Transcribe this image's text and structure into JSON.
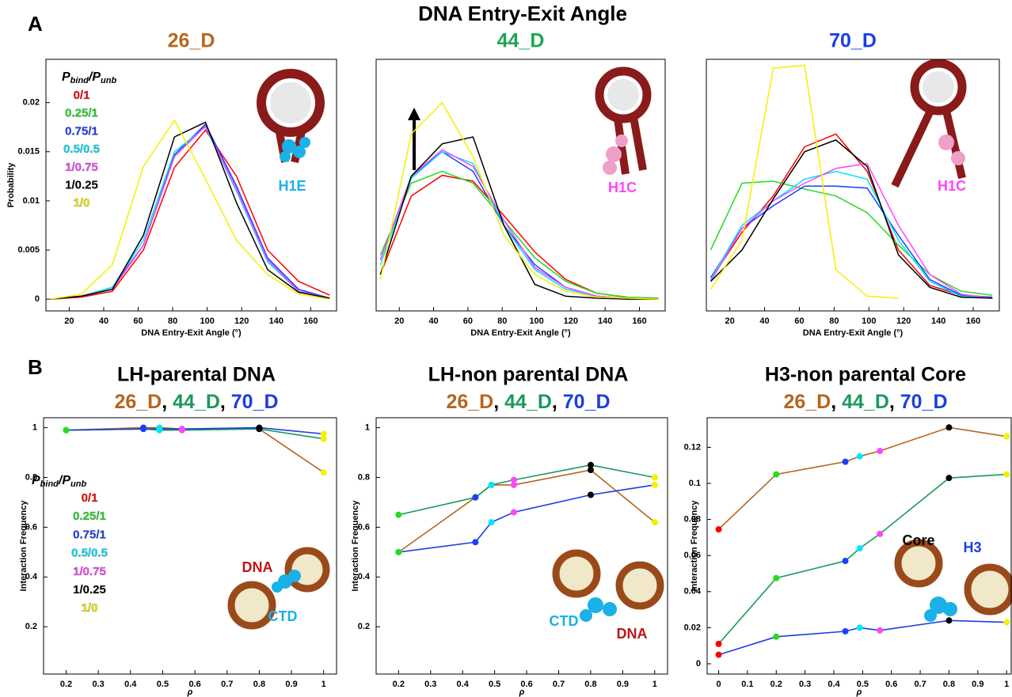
{
  "figure": {
    "panel_a": "A",
    "panel_b": "B",
    "title": "DNA Entry-Exit Angle"
  },
  "chart_data": [
    {
      "type": "line",
      "title": "26_D",
      "title_color": "#b8661e",
      "x_label": "DNA Entry-Exit Angle (°)",
      "y_label": "Probability",
      "x": [
        9,
        27,
        45,
        63,
        81,
        99,
        117,
        135,
        153,
        171
      ],
      "xlim": [
        6.5,
        175
      ],
      "xticks": [
        20,
        40,
        60,
        80,
        100,
        120,
        140,
        160
      ],
      "ylim": [
        -0.0012,
        0.0244
      ],
      "yticks": [
        0,
        0.005,
        0.01,
        0.015,
        0.02
      ],
      "legend_title": [
        {
          "text": "P"
        },
        {
          "text": "bind",
          "sub": true
        },
        {
          "text": "/"
        },
        {
          "text": "P"
        },
        {
          "text": "unb",
          "sub": true
        }
      ],
      "series": [
        {
          "name": "0/1",
          "color": "#ff0000",
          "values": [
            0,
            0.0002,
            0.0008,
            0.005,
            0.0134,
            0.0172,
            0.0125,
            0.005,
            0.0018,
            0.0004
          ]
        },
        {
          "name": "0.25/1",
          "color": "#22dd22",
          "values": [
            0,
            0.0003,
            0.001,
            0.0055,
            0.0145,
            0.0177,
            0.011,
            0.004,
            0.0008,
            0.0001
          ]
        },
        {
          "name": "0.75/1",
          "color": "#1a3fff",
          "values": [
            0,
            0.0003,
            0.0012,
            0.0055,
            0.0147,
            0.0178,
            0.0115,
            0.0042,
            0.001,
            0.0001
          ]
        },
        {
          "name": "0.5/0.5",
          "color": "#00e5ff",
          "values": [
            0,
            0.0003,
            0.0012,
            0.006,
            0.015,
            0.0175,
            0.011,
            0.0038,
            0.0008,
            0.0001
          ]
        },
        {
          "name": "1/0.75",
          "color": "#ff44ff",
          "values": [
            0,
            0.0003,
            0.001,
            0.0055,
            0.0145,
            0.0176,
            0.0112,
            0.004,
            0.0008,
            0.0001
          ]
        },
        {
          "name": "1/0.25",
          "color": "#000000",
          "values": [
            0,
            0.0003,
            0.001,
            0.0065,
            0.0165,
            0.018,
            0.0098,
            0.003,
            0.0007,
            0.0001
          ]
        },
        {
          "name": "1/0",
          "color": "#f5f000",
          "values": [
            0,
            0.0005,
            0.0035,
            0.0135,
            0.0182,
            0.0122,
            0.006,
            0.0025,
            0.0005,
            0
          ]
        }
      ],
      "legend": true,
      "annotations": [
        {
          "text": "H1E",
          "color": "#1ab0e8"
        }
      ]
    },
    {
      "type": "line",
      "title": "44_D",
      "title_color": "#1aa84f",
      "x_label": "DNA Entry-Exit Angle (°)",
      "x": [
        9,
        27,
        45,
        63,
        81,
        99,
        117,
        135,
        153,
        171
      ],
      "xlim": [
        6.5,
        175
      ],
      "xticks": [
        20,
        40,
        60,
        80,
        100,
        120,
        140,
        160
      ],
      "ylim": [
        -0.0012,
        0.0244
      ],
      "series": [
        {
          "name": "0/1",
          "color": "#ff0000",
          "values": [
            0.0025,
            0.0105,
            0.0126,
            0.012,
            0.0085,
            0.0048,
            0.002,
            0.0006,
            0.0002,
            0.0001
          ]
        },
        {
          "name": "0.25/1",
          "color": "#22dd22",
          "values": [
            0.0045,
            0.0118,
            0.013,
            0.0118,
            0.008,
            0.0042,
            0.0018,
            0.0006,
            0.0002,
            0.0001
          ]
        },
        {
          "name": "0.75/1",
          "color": "#1a3fff",
          "values": [
            0.004,
            0.0125,
            0.015,
            0.013,
            0.0075,
            0.0035,
            0.0012,
            0.0003,
            0.0001,
            0
          ]
        },
        {
          "name": "0.5/0.5",
          "color": "#00e5ff",
          "values": [
            0.0035,
            0.0123,
            0.015,
            0.0138,
            0.0075,
            0.003,
            0.001,
            0.0003,
            0.0001,
            0
          ]
        },
        {
          "name": "1/0.75",
          "color": "#ff44ff",
          "values": [
            0.004,
            0.0125,
            0.0152,
            0.0135,
            0.008,
            0.0032,
            0.0012,
            0.0003,
            0.0001,
            0
          ]
        },
        {
          "name": "1/0.25",
          "color": "#000000",
          "values": [
            0.0025,
            0.0125,
            0.0158,
            0.0165,
            0.0075,
            0.0015,
            0.0003,
            0.0001,
            0,
            0
          ]
        },
        {
          "name": "1/0",
          "color": "#f5f000",
          "values": [
            0.002,
            0.0168,
            0.02,
            0.0145,
            0.0065,
            0.0025,
            0.0008,
            0.0002,
            0.0001,
            0
          ]
        }
      ],
      "annotations": [
        {
          "text": "H1C",
          "color": "#ff44ff"
        }
      ]
    },
    {
      "type": "line",
      "title": "70_D",
      "title_color": "#1a3fe0",
      "x_label": "DNA Entry-Exit Angle (°)",
      "x": [
        9,
        27,
        45,
        63,
        81,
        99,
        117,
        135,
        153,
        171
      ],
      "xlim": [
        6.5,
        175
      ],
      "xticks": [
        20,
        40,
        60,
        80,
        100,
        120,
        140,
        160
      ],
      "ylim": [
        -0.0012,
        0.0244
      ],
      "series": [
        {
          "name": "0/1",
          "color": "#ff0000",
          "values": [
            0.002,
            0.0068,
            0.0105,
            0.0155,
            0.0168,
            0.013,
            0.005,
            0.0014,
            0.0004,
            0.0001
          ]
        },
        {
          "name": "0.25/1",
          "color": "#22dd22",
          "values": [
            0.005,
            0.0118,
            0.012,
            0.0112,
            0.0105,
            0.0088,
            0.0055,
            0.0025,
            0.0008,
            0.0004
          ]
        },
        {
          "name": "0.75/1",
          "color": "#1a3fff",
          "values": [
            0.0022,
            0.0072,
            0.0095,
            0.0115,
            0.0115,
            0.0113,
            0.0065,
            0.002,
            0.0004,
            0.0002
          ]
        },
        {
          "name": "0.5/0.5",
          "color": "#00e5ff",
          "values": [
            0.002,
            0.0075,
            0.01,
            0.0122,
            0.013,
            0.0122,
            0.006,
            0.0018,
            0.0003,
            0.0001
          ]
        },
        {
          "name": "1/0.75",
          "color": "#ff44ff",
          "values": [
            0.0018,
            0.0072,
            0.01,
            0.0118,
            0.0133,
            0.0138,
            0.0075,
            0.0025,
            0.0005,
            0.0001
          ]
        },
        {
          "name": "1/0.25",
          "color": "#000000",
          "values": [
            0.0018,
            0.005,
            0.0102,
            0.015,
            0.0162,
            0.0135,
            0.0045,
            0.0012,
            0.0002,
            0.0001
          ]
        },
        {
          "name": "1/0",
          "color": "#f5f000",
          "values": [
            0.001,
            0.006,
            0.0235,
            0.0238,
            0.003,
            0.0003,
            0.0001,
            null,
            null,
            null
          ]
        }
      ],
      "annotations": [
        {
          "text": "H1C",
          "color": "#ff44ff"
        }
      ]
    },
    {
      "type": "line",
      "markers": true,
      "title": "LH-parental DNA",
      "subtitle_separator": ", ",
      "x_label": "ρ",
      "y_label": "Interaction Frequency",
      "x": [
        0.2,
        0.44,
        0.49,
        0.56,
        0.8,
        1
      ],
      "marker_colors": [
        "#22dd22",
        "#1a3fff",
        "#00e5ff",
        "#ff44ff",
        "#000000",
        "#f5f000"
      ],
      "xlim": [
        0.13,
        1.04
      ],
      "xticks": [
        0.2,
        0.3,
        0.4,
        0.5,
        0.6,
        0.7,
        0.8,
        0.9,
        1
      ],
      "ylim": [
        0.01,
        1.04
      ],
      "yticks": [
        0.2,
        0.4,
        0.6,
        0.8,
        1
      ],
      "series": [
        {
          "name": "26_D",
          "color": "#b5651d",
          "values": [
            0.99,
            1.0,
            1.0,
            0.995,
            0.995,
            0.82
          ]
        },
        {
          "name": "44_D",
          "color": "#1a9a5a",
          "values": [
            0.99,
            0.995,
            0.99,
            0.99,
            0.995,
            0.955
          ]
        },
        {
          "name": "70_D",
          "color": "#1a3fe0",
          "values": [
            0.99,
            0.995,
            0.995,
            0.995,
            1.0,
            0.975
          ]
        }
      ],
      "key": {
        "title": [
          {
            "text": "P"
          },
          {
            "text": "bind",
            "sub": true
          },
          {
            "text": "/"
          },
          {
            "text": "P"
          },
          {
            "text": "unb",
            "sub": true
          }
        ],
        "entries": [
          {
            "label": "0/1",
            "color": "#ff0000"
          },
          {
            "label": "0.25/1",
            "color": "#22dd22"
          },
          {
            "label": "0.75/1",
            "color": "#1a3fff"
          },
          {
            "label": "0.5/0.5",
            "color": "#00e5ff"
          },
          {
            "label": "1/0.75",
            "color": "#ff44ff"
          },
          {
            "label": "1/0.25",
            "color": "#000000"
          },
          {
            "label": "1/0",
            "color": "#f5f000"
          }
        ]
      },
      "annotations": [
        {
          "text": "DNA",
          "color": "#c0141a"
        },
        {
          "text": "CTD",
          "color": "#1ab0e8"
        }
      ]
    },
    {
      "type": "line",
      "markers": true,
      "title": "LH-non parental DNA",
      "subtitle_separator": ", ",
      "x_label": "ρ",
      "y_label": "Interaction Frequency",
      "x": [
        0.2,
        0.44,
        0.49,
        0.56,
        0.8,
        1
      ],
      "marker_colors": [
        "#22dd22",
        "#1a3fff",
        "#00e5ff",
        "#ff44ff",
        "#000000",
        "#f5f000"
      ],
      "xlim": [
        0.13,
        1.04
      ],
      "xticks": [
        0.2,
        0.3,
        0.4,
        0.5,
        0.6,
        0.7,
        0.8,
        0.9,
        1
      ],
      "ylim": [
        0.01,
        1.04
      ],
      "yticks": [
        0.2,
        0.4,
        0.6,
        0.8,
        1
      ],
      "series": [
        {
          "name": "26_D",
          "color": "#b5651d",
          "values": [
            0.5,
            0.72,
            0.77,
            0.77,
            0.83,
            0.62
          ]
        },
        {
          "name": "44_D",
          "color": "#1a9a5a",
          "values": [
            0.65,
            0.72,
            0.77,
            0.79,
            0.85,
            0.8
          ]
        },
        {
          "name": "70_D",
          "color": "#1a3fe0",
          "values": [
            0.5,
            0.54,
            0.62,
            0.66,
            0.73,
            0.77
          ]
        }
      ],
      "annotations": [
        {
          "text": "CTD",
          "color": "#1ab0e8"
        },
        {
          "text": "DNA",
          "color": "#c0141a"
        }
      ]
    },
    {
      "type": "line",
      "markers": true,
      "title": "H3-non parental Core",
      "subtitle_separator": ", ",
      "x_label": "ρ",
      "y_label": "Interaction Frequency",
      "x": [
        0,
        0.2,
        0.44,
        0.49,
        0.56,
        0.8,
        1
      ],
      "marker_colors": [
        "#ff0000",
        "#22dd22",
        "#1a3fff",
        "#00e5ff",
        "#ff44ff",
        "#000000",
        "#f5f000"
      ],
      "xlim": [
        -0.04,
        1.016
      ],
      "xticks": [
        0,
        0.1,
        0.2,
        0.3,
        0.4,
        0.5,
        0.6,
        0.7,
        0.8,
        0.9,
        1
      ],
      "ylim": [
        -0.0057,
        0.1364
      ],
      "yticks": [
        0,
        0.02,
        0.04,
        0.06,
        0.08,
        0.1,
        0.12
      ],
      "series": [
        {
          "name": "26_D",
          "color": "#b5651d",
          "values": [
            0.0745,
            0.105,
            0.112,
            0.115,
            0.118,
            0.131,
            0.126
          ]
        },
        {
          "name": "44_D",
          "color": "#1a9a5a",
          "values": [
            0.011,
            0.0475,
            0.057,
            0.064,
            0.072,
            0.103,
            0.105
          ]
        },
        {
          "name": "70_D",
          "color": "#1a3fe0",
          "values": [
            0.005,
            0.015,
            0.018,
            0.02,
            0.0185,
            0.024,
            0.023
          ]
        }
      ],
      "annotations": [
        {
          "text": "Core",
          "color": "#000000"
        },
        {
          "text": "H3",
          "color": "#1a3fe0"
        }
      ]
    }
  ]
}
